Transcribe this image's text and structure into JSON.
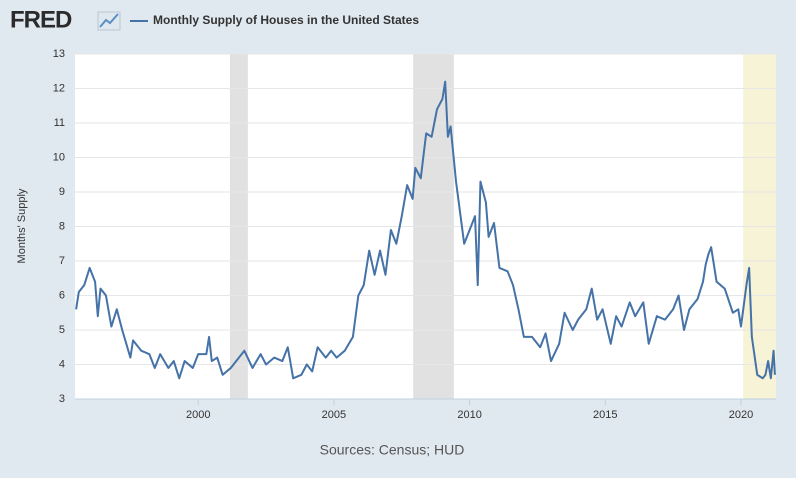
{
  "chart_data": {
    "type": "line",
    "logo": "FRED",
    "title": "Monthly Supply of Houses in the United States",
    "ylabel": "Months' Supply",
    "source": "Sources: Census; HUD",
    "xlim": [
      1995.46,
      2021.29
    ],
    "ylim": [
      3,
      13
    ],
    "xticks": [
      2000,
      2005,
      2010,
      2015,
      2020
    ],
    "yticks": [
      3,
      4,
      5,
      6,
      7,
      8,
      9,
      10,
      11,
      12,
      13
    ],
    "grid": true,
    "shaded": [
      {
        "x": [
          2001.17,
          2001.83
        ],
        "color": "#e1e1e1"
      },
      {
        "x": [
          2007.92,
          2009.42
        ],
        "color": "#e1e1e1"
      },
      {
        "x": [
          2020.08,
          2021.29
        ],
        "color": "#f6f3d6"
      }
    ],
    "series": [
      {
        "name": "Monthly Supply of Houses in the United States",
        "color": "#4572a7",
        "x": [
          1995.5,
          1995.6,
          1995.8,
          1996.0,
          1996.2,
          1996.3,
          1996.4,
          1996.6,
          1996.8,
          1997.0,
          1997.2,
          1997.5,
          1997.6,
          1997.9,
          1998.2,
          1998.4,
          1998.6,
          1998.9,
          1999.1,
          1999.3,
          1999.5,
          1999.8,
          2000.0,
          2000.3,
          2000.4,
          2000.5,
          2000.7,
          2000.9,
          2001.2,
          2001.5,
          2001.7,
          2002.0,
          2002.3,
          2002.5,
          2002.8,
          2003.1,
          2003.3,
          2003.5,
          2003.8,
          2004.0,
          2004.2,
          2004.4,
          2004.7,
          2004.9,
          2005.1,
          2005.4,
          2005.7,
          2005.9,
          2006.1,
          2006.3,
          2006.5,
          2006.7,
          2006.9,
          2007.1,
          2007.3,
          2007.5,
          2007.7,
          2007.9,
          2008.0,
          2008.2,
          2008.4,
          2008.6,
          2008.8,
          2009.0,
          2009.1,
          2009.2,
          2009.3,
          2009.5,
          2009.7,
          2009.8,
          2010.0,
          2010.2,
          2010.3,
          2010.4,
          2010.6,
          2010.7,
          2010.9,
          2011.1,
          2011.4,
          2011.6,
          2011.8,
          2012.0,
          2012.3,
          2012.6,
          2012.8,
          2013.0,
          2013.3,
          2013.5,
          2013.8,
          2014.0,
          2014.3,
          2014.5,
          2014.7,
          2014.9,
          2015.2,
          2015.4,
          2015.6,
          2015.9,
          2016.1,
          2016.4,
          2016.6,
          2016.9,
          2017.2,
          2017.5,
          2017.7,
          2017.9,
          2018.1,
          2018.4,
          2018.6,
          2018.7,
          2018.8,
          2018.9,
          2019.1,
          2019.4,
          2019.7,
          2019.9,
          2020.0,
          2020.2,
          2020.3,
          2020.4,
          2020.6,
          2020.8,
          2020.9,
          2021.0,
          2021.1,
          2021.2,
          2021.25
        ],
        "values": [
          5.6,
          6.1,
          6.3,
          6.8,
          6.4,
          5.4,
          6.2,
          6.0,
          5.1,
          5.6,
          5.0,
          4.2,
          4.7,
          4.4,
          4.3,
          3.9,
          4.3,
          3.9,
          4.1,
          3.6,
          4.1,
          3.9,
          4.3,
          4.3,
          4.8,
          4.1,
          4.2,
          3.7,
          3.9,
          4.2,
          4.4,
          3.9,
          4.3,
          4.0,
          4.2,
          4.1,
          4.5,
          3.6,
          3.7,
          4.0,
          3.8,
          4.5,
          4.2,
          4.4,
          4.2,
          4.4,
          4.8,
          6.0,
          6.3,
          7.3,
          6.6,
          7.3,
          6.6,
          7.9,
          7.5,
          8.3,
          9.2,
          8.8,
          9.7,
          9.4,
          10.7,
          10.6,
          11.4,
          11.7,
          12.2,
          10.6,
          10.9,
          9.3,
          8.1,
          7.5,
          7.9,
          8.3,
          6.3,
          9.3,
          8.7,
          7.7,
          8.1,
          6.8,
          6.7,
          6.3,
          5.6,
          4.8,
          4.8,
          4.5,
          4.9,
          4.1,
          4.6,
          5.5,
          5.0,
          5.3,
          5.6,
          6.2,
          5.3,
          5.6,
          4.6,
          5.4,
          5.1,
          5.8,
          5.4,
          5.8,
          4.6,
          5.4,
          5.3,
          5.6,
          6.0,
          5.0,
          5.6,
          5.9,
          6.4,
          6.9,
          7.2,
          7.4,
          6.4,
          6.2,
          5.5,
          5.6,
          5.1,
          6.3,
          6.8,
          4.8,
          3.7,
          3.6,
          3.7,
          4.1,
          3.6,
          4.4,
          3.7
        ]
      }
    ]
  }
}
